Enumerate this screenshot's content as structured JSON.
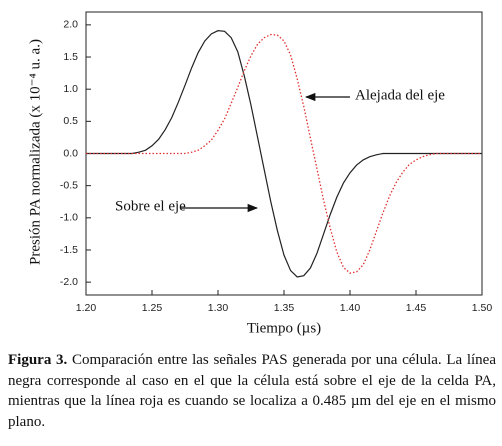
{
  "chart_data": {
    "type": "line",
    "xlabel": "Tiempo (µs)",
    "ylabel": "Presión PA normalizada (x 10⁻⁴ u. a.)",
    "x": [
      1.2,
      1.205,
      1.21,
      1.215,
      1.22,
      1.225,
      1.23,
      1.235,
      1.24,
      1.245,
      1.25,
      1.255,
      1.26,
      1.265,
      1.27,
      1.275,
      1.28,
      1.285,
      1.29,
      1.295,
      1.3,
      1.305,
      1.31,
      1.315,
      1.32,
      1.325,
      1.33,
      1.335,
      1.34,
      1.345,
      1.35,
      1.355,
      1.36,
      1.365,
      1.37,
      1.375,
      1.38,
      1.385,
      1.39,
      1.395,
      1.4,
      1.405,
      1.41,
      1.415,
      1.42,
      1.425,
      1.43,
      1.435,
      1.44,
      1.445,
      1.45,
      1.455,
      1.46,
      1.465,
      1.47,
      1.475,
      1.48,
      1.485,
      1.49,
      1.495,
      1.5
    ],
    "series": [
      {
        "color": "#222222",
        "style": "solid",
        "values": [
          0,
          0,
          0,
          0,
          0,
          0,
          0,
          0,
          0.02,
          0.05,
          0.12,
          0.22,
          0.37,
          0.56,
          0.8,
          1.06,
          1.33,
          1.57,
          1.75,
          1.86,
          1.91,
          1.9,
          1.8,
          1.58,
          1.2,
          0.75,
          0.25,
          -0.25,
          -0.75,
          -1.2,
          -1.58,
          -1.82,
          -1.92,
          -1.9,
          -1.78,
          -1.55,
          -1.25,
          -0.95,
          -0.68,
          -0.46,
          -0.3,
          -0.18,
          -0.1,
          -0.05,
          -0.02,
          0,
          0,
          0,
          0,
          0,
          0,
          0,
          0,
          0,
          0,
          0,
          0,
          0,
          0,
          0,
          0
        ]
      },
      {
        "color": "#e0302e",
        "style": "dotted",
        "values": [
          0,
          0,
          0,
          0,
          0,
          0,
          0,
          0,
          0,
          0,
          0,
          0,
          0,
          0,
          0,
          0,
          0.02,
          0.05,
          0.12,
          0.21,
          0.36,
          0.54,
          0.78,
          1.03,
          1.29,
          1.52,
          1.7,
          1.8,
          1.85,
          1.84,
          1.75,
          1.53,
          1.16,
          0.73,
          0.24,
          -0.24,
          -0.73,
          -1.16,
          -1.53,
          -1.77,
          -1.86,
          -1.84,
          -1.73,
          -1.5,
          -1.21,
          -0.92,
          -0.66,
          -0.45,
          -0.29,
          -0.17,
          -0.1,
          -0.05,
          -0.02,
          0,
          0,
          0,
          0,
          0,
          0,
          0,
          0
        ]
      }
    ],
    "xlim": [
      1.2,
      1.5
    ],
    "xticks": [
      {
        "value": 1.2,
        "label": "1.20"
      },
      {
        "value": 1.25,
        "label": "1.25"
      },
      {
        "value": 1.3,
        "label": "1.30"
      },
      {
        "value": 1.35,
        "label": "1.35"
      },
      {
        "value": 1.4,
        "label": "1.40"
      },
      {
        "value": 1.45,
        "label": "1.45"
      },
      {
        "value": 1.5,
        "label": "1.50"
      }
    ],
    "ylim": [
      -2.2,
      2.2
    ],
    "yticks": [
      {
        "value": -2,
        "label": "-2.0"
      },
      {
        "value": -1.5,
        "label": "-1.5"
      },
      {
        "value": -1,
        "label": "-1.0"
      },
      {
        "value": -0.5,
        "label": "-0.5"
      },
      {
        "value": 0,
        "label": "0.0"
      },
      {
        "value": 0.5,
        "label": "0.5"
      },
      {
        "value": 1,
        "label": "1.0"
      },
      {
        "value": 1.5,
        "label": "1.5"
      },
      {
        "value": 2,
        "label": "2.0"
      }
    ],
    "annotations": [
      {
        "text": "Alejada del eje"
      },
      {
        "text": "Sobre el eje"
      }
    ]
  },
  "caption": {
    "label": "Figura 3.",
    "text": " Comparación entre las señales PAS generada por una célula. La línea negra corresponde al caso en el que la célula está sobre el eje de la celda PA, mientras que la línea roja es cuando se localiza a 0.485 µm del eje en el mismo plano."
  }
}
